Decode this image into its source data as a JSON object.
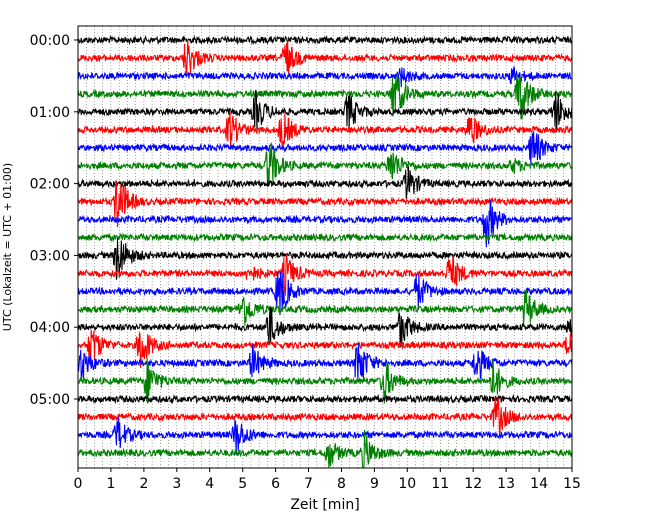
{
  "chart_data": {
    "type": "line",
    "title": "",
    "xlabel": "Zeit  [min]",
    "ylabel": "UTC (Lokalzeit = UTC + 01:00)",
    "xlim": [
      0,
      15
    ],
    "x_ticks": [
      "0",
      "1",
      "2",
      "3",
      "4",
      "5",
      "6",
      "7",
      "8",
      "9",
      "10",
      "11",
      "12",
      "13",
      "14",
      "15"
    ],
    "y_ticks": [
      {
        "label": "00:00",
        "trace": 0
      },
      {
        "label": "01:00",
        "trace": 4
      },
      {
        "label": "02:00",
        "trace": 8
      },
      {
        "label": "03:00",
        "trace": 12
      },
      {
        "label": "04:00",
        "trace": 16
      },
      {
        "label": "05:00",
        "trace": 20
      }
    ],
    "grid": "vertical dotted, every 0.25 min",
    "trace_interval_min": 15,
    "colors": [
      "#000000",
      "#ff0000",
      "#0000ff",
      "#008000"
    ],
    "traces": [
      {
        "start": "00:00",
        "color": "#000000",
        "events": []
      },
      {
        "start": "00:15",
        "color": "#ff0000",
        "events": [
          {
            "t": 3.3,
            "amp": 1.0
          },
          {
            "t": 6.3,
            "amp": 0.9
          }
        ]
      },
      {
        "start": "00:30",
        "color": "#0000ff",
        "events": [
          {
            "t": 9.8,
            "amp": 0.4
          },
          {
            "t": 13.2,
            "amp": 0.4
          }
        ]
      },
      {
        "start": "00:45",
        "color": "#008000",
        "events": [
          {
            "t": 9.6,
            "amp": 1.3
          },
          {
            "t": 13.4,
            "amp": 1.5
          }
        ]
      },
      {
        "start": "01:00",
        "color": "#000000",
        "events": [
          {
            "t": 5.4,
            "amp": 0.9
          },
          {
            "t": 8.2,
            "amp": 0.9
          },
          {
            "t": 14.5,
            "amp": 1.0
          }
        ]
      },
      {
        "start": "01:15",
        "color": "#ff0000",
        "events": [
          {
            "t": 4.6,
            "amp": 0.9
          },
          {
            "t": 6.2,
            "amp": 0.9
          },
          {
            "t": 11.9,
            "amp": 0.8
          }
        ]
      },
      {
        "start": "01:30",
        "color": "#0000ff",
        "events": [
          {
            "t": 13.8,
            "amp": 1.0
          }
        ]
      },
      {
        "start": "01:45",
        "color": "#008000",
        "events": [
          {
            "t": 5.8,
            "amp": 1.2
          },
          {
            "t": 9.5,
            "amp": 0.9
          },
          {
            "t": 13.2,
            "amp": 0.3
          }
        ]
      },
      {
        "start": "02:00",
        "color": "#000000",
        "events": [
          {
            "t": 10.0,
            "amp": 0.8
          }
        ]
      },
      {
        "start": "02:15",
        "color": "#ff0000",
        "events": [
          {
            "t": 1.2,
            "amp": 1.4
          }
        ]
      },
      {
        "start": "02:30",
        "color": "#0000ff",
        "events": [
          {
            "t": 12.4,
            "amp": 1.3
          }
        ]
      },
      {
        "start": "02:45",
        "color": "#008000",
        "events": []
      },
      {
        "start": "03:00",
        "color": "#000000",
        "events": [
          {
            "t": 1.2,
            "amp": 1.3
          }
        ]
      },
      {
        "start": "03:15",
        "color": "#ff0000",
        "events": [
          {
            "t": 6.3,
            "amp": 0.9
          },
          {
            "t": 11.3,
            "amp": 1.0
          },
          {
            "t": 5.2,
            "amp": 0.4
          }
        ]
      },
      {
        "start": "03:30",
        "color": "#0000ff",
        "events": [
          {
            "t": 6.1,
            "amp": 1.3
          },
          {
            "t": 10.3,
            "amp": 0.9
          }
        ]
      },
      {
        "start": "03:45",
        "color": "#008000",
        "events": [
          {
            "t": 5.0,
            "amp": 0.9
          },
          {
            "t": 13.6,
            "amp": 0.9
          }
        ]
      },
      {
        "start": "04:00",
        "color": "#000000",
        "events": [
          {
            "t": 5.8,
            "amp": 1.0
          },
          {
            "t": 9.8,
            "amp": 0.9
          },
          {
            "t": 14.9,
            "amp": 0.4
          }
        ]
      },
      {
        "start": "04:15",
        "color": "#ff0000",
        "events": [
          {
            "t": 0.4,
            "amp": 1.0
          },
          {
            "t": 1.9,
            "amp": 1.1
          },
          {
            "t": 14.9,
            "amp": 0.6
          }
        ]
      },
      {
        "start": "04:30",
        "color": "#0000ff",
        "events": [
          {
            "t": 0.1,
            "amp": 0.8
          },
          {
            "t": 5.3,
            "amp": 0.8
          },
          {
            "t": 8.5,
            "amp": 1.2
          },
          {
            "t": 12.1,
            "amp": 0.9
          }
        ]
      },
      {
        "start": "04:45",
        "color": "#008000",
        "events": [
          {
            "t": 2.1,
            "amp": 1.0
          },
          {
            "t": 9.3,
            "amp": 1.0
          },
          {
            "t": 12.6,
            "amp": 0.9
          }
        ]
      },
      {
        "start": "05:00",
        "color": "#000000",
        "events": []
      },
      {
        "start": "05:15",
        "color": "#ff0000",
        "events": [
          {
            "t": 12.7,
            "amp": 1.0
          }
        ]
      },
      {
        "start": "05:30",
        "color": "#0000ff",
        "events": [
          {
            "t": 1.2,
            "amp": 0.8
          },
          {
            "t": 4.8,
            "amp": 0.9
          }
        ]
      },
      {
        "start": "05:45",
        "color": "#008000",
        "events": [
          {
            "t": 7.6,
            "amp": 0.7
          },
          {
            "t": 8.7,
            "amp": 0.9
          }
        ]
      }
    ]
  }
}
